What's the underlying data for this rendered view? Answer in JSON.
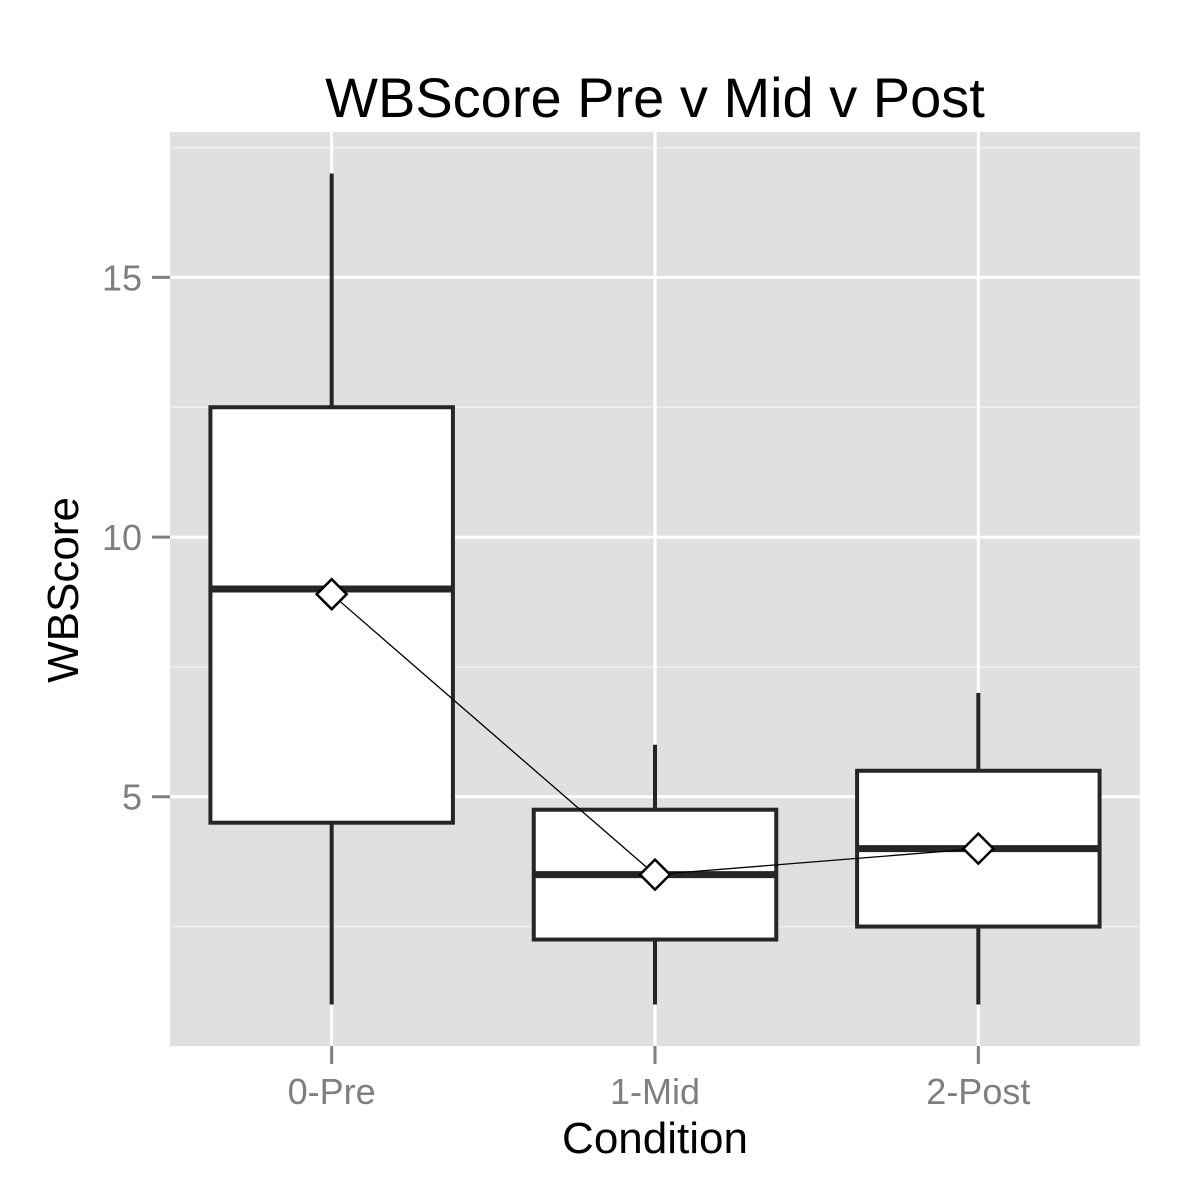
{
  "chart_data": {
    "type": "box",
    "title": "WBScore Pre v Mid v Post",
    "xlabel": "Condition",
    "ylabel": "WBScore",
    "categories": [
      "0-Pre",
      "1-Mid",
      "2-Post"
    ],
    "ylim": [
      0.2,
      17.8
    ],
    "yticks": [
      5,
      10,
      15
    ],
    "ytick_labels": [
      "5",
      "10",
      "15"
    ],
    "grid": true,
    "legend": "none",
    "boxes": [
      {
        "category": "0-Pre",
        "whisker_low": 1,
        "q1": 4.5,
        "median": 9,
        "q3": 12.5,
        "whisker_high": 17,
        "mean": 8.9
      },
      {
        "category": "1-Mid",
        "whisker_low": 1,
        "q1": 2.25,
        "median": 3.5,
        "q3": 4.75,
        "whisker_high": 6,
        "mean": 3.5
      },
      {
        "category": "2-Post",
        "whisker_low": 1,
        "q1": 2.5,
        "median": 4,
        "q3": 5.5,
        "whisker_high": 7,
        "mean": 4
      }
    ],
    "colors": {
      "panel": "#e0e0e0",
      "grid_major": "#ffffff",
      "grid_minor": "#efefef",
      "box_fill": "#ffffff",
      "box_stroke": "#262626",
      "tick": "#7f7f7f"
    }
  }
}
